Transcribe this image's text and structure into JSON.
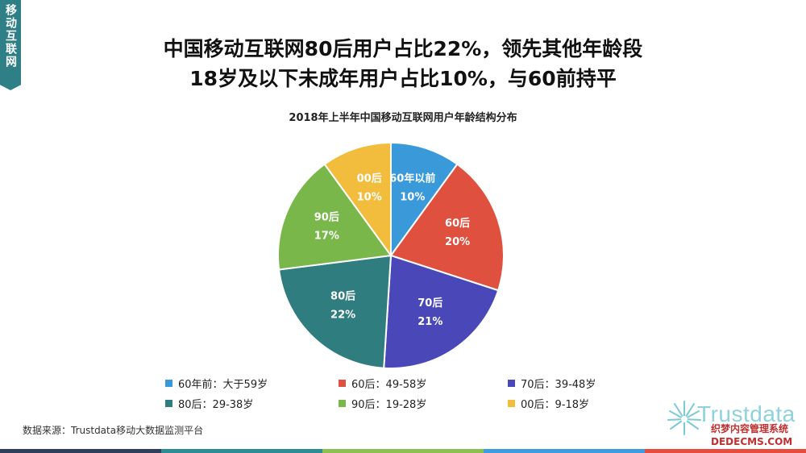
{
  "side_tab": "移动互联网",
  "headline": {
    "line1": "中国移动互联网80后用户占比22%，领先其他年龄段",
    "line2": "18岁及以下未成年用户占比10%，与60前持平"
  },
  "source": "数据来源：Trustdata移动大数据监测平台",
  "logo": "Trustdata",
  "watermark": {
    "line1": "织梦内容管理系统",
    "line2": "DEDECMS.COM"
  },
  "colors": {
    "tab": "#2e7f86",
    "footer": [
      "#2f3e5b",
      "#2e8c96",
      "#8cc152",
      "#3d9de0",
      "#e74c3c"
    ]
  },
  "chart_data": {
    "type": "pie",
    "title": "2018年上半年中国移动互联网用户年龄结构分布",
    "slices": [
      {
        "label": "60年以前",
        "value": 10,
        "display": "10%",
        "legend": "60年前：大于59岁",
        "color": "#3a9ad9"
      },
      {
        "label": "60后",
        "value": 20,
        "display": "20%",
        "legend": "60后：49-58岁",
        "color": "#e0503e"
      },
      {
        "label": "70后",
        "value": 21,
        "display": "21%",
        "legend": "70后：39-48岁",
        "color": "#4a47b8"
      },
      {
        "label": "80后",
        "value": 22,
        "display": "22%",
        "legend": "80后：29-38岁",
        "color": "#2f7d7e"
      },
      {
        "label": "90后",
        "value": 17,
        "display": "17%",
        "legend": "90后：19-28岁",
        "color": "#79b74a"
      },
      {
        "label": "00后",
        "value": 10,
        "display": "10%",
        "legend": "00后：9-18岁",
        "color": "#f2bc3d"
      }
    ],
    "legend_position": "bottom"
  }
}
